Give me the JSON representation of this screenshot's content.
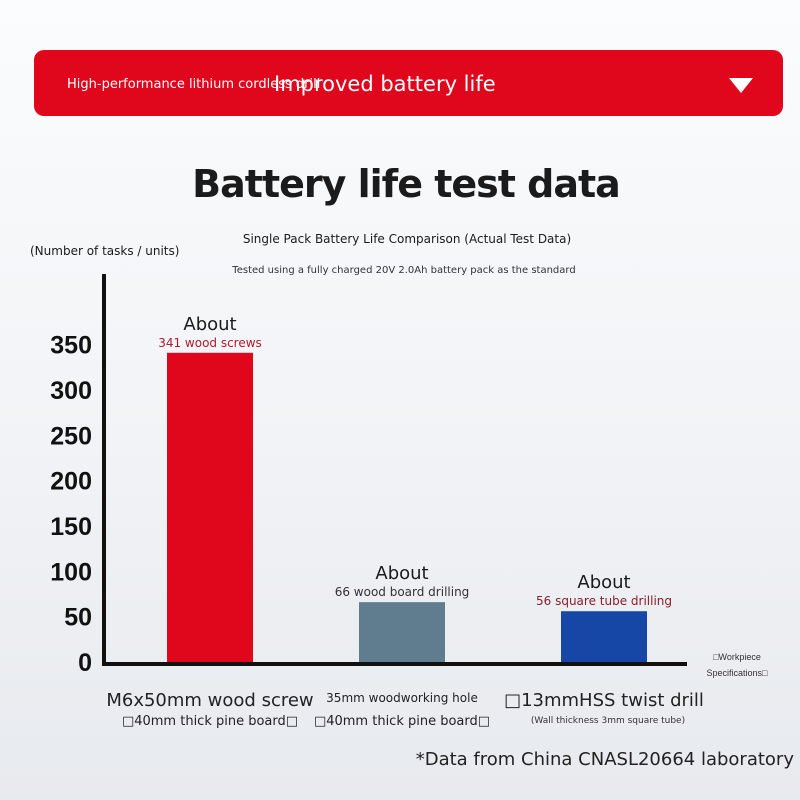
{
  "banner": {
    "subtitle": "High-performance lithium cordless drill",
    "title": "Improved battery life",
    "chevron_icon": "chevron-down-icon",
    "color": "#e0061b"
  },
  "header": {
    "title": "Battery life test data",
    "subtitle": "Single Pack Battery Life Comparison (Actual Test Data)",
    "note": "Tested using a fully charged 20V 2.0Ah battery pack as the standard"
  },
  "footnote": "*Data from China CNASL20664 laboratory",
  "chart_data": {
    "type": "bar",
    "ylabel": "(Number of tasks / units)",
    "xlabel_lines": [
      "□Workpiece",
      "Specifications□"
    ],
    "ylim": [
      0,
      400
    ],
    "yticks": [
      0,
      50,
      100,
      150,
      200,
      250,
      300,
      350
    ],
    "grid": false,
    "categories": [
      {
        "line1": "M6x50mm wood screw",
        "line2": "□40mm thick pine board□"
      },
      {
        "line1": "35mm woodworking hole",
        "line2": "□40mm thick pine board□"
      },
      {
        "line1": "□13mmHSS twist drill",
        "line2": "(Wall thickness 3mm square tube)"
      }
    ],
    "values": [
      341,
      66,
      56
    ],
    "colors": [
      "#e0061b",
      "#607d8f",
      "#1747a6"
    ],
    "annotations": [
      {
        "prefix": "About",
        "text": "341 wood screws",
        "color": "#b11b2b"
      },
      {
        "prefix": "About",
        "text": "66 wood board drilling",
        "color": "#333333"
      },
      {
        "prefix": "About",
        "text": "56 square tube drilling",
        "color": "#8a1d2b"
      }
    ]
  }
}
